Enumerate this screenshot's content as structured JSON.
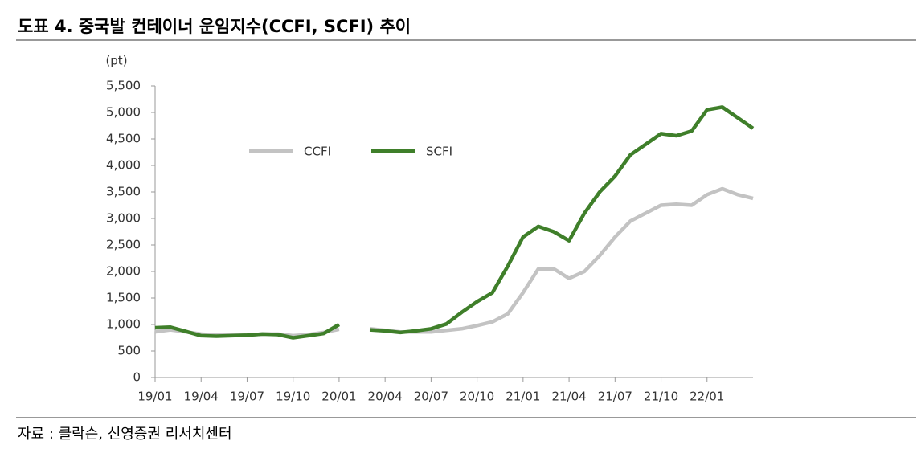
{
  "header": {
    "title": "도표 4. 중국발 컨테이너 운임지수(CCFI, SCFI) 추이"
  },
  "chart_data": {
    "type": "line",
    "y_label": "(pt)",
    "x": [
      0,
      1,
      2,
      3,
      4,
      5,
      6,
      7,
      8,
      9,
      10,
      11,
      12,
      13,
      14,
      15,
      16,
      17,
      18,
      19,
      20,
      21,
      22,
      23,
      24,
      25,
      26,
      27,
      28,
      29,
      30,
      31,
      32,
      33,
      34,
      35,
      36,
      37,
      38,
      39
    ],
    "xlim": [
      0,
      39
    ],
    "xticks": [
      {
        "value": 0,
        "label": "19/01"
      },
      {
        "value": 3,
        "label": "19/04"
      },
      {
        "value": 6,
        "label": "19/07"
      },
      {
        "value": 9,
        "label": "19/10"
      },
      {
        "value": 12,
        "label": "20/01"
      },
      {
        "value": 15,
        "label": "20/04"
      },
      {
        "value": 18,
        "label": "20/07"
      },
      {
        "value": 21,
        "label": "20/10"
      },
      {
        "value": 24,
        "label": "21/01"
      },
      {
        "value": 27,
        "label": "21/04"
      },
      {
        "value": 30,
        "label": "21/07"
      },
      {
        "value": 33,
        "label": "21/10"
      },
      {
        "value": 36,
        "label": "22/01"
      }
    ],
    "ylim": [
      0,
      5500
    ],
    "yticks": [
      0,
      500,
      {
        "value": 1000,
        "label": "1,000"
      },
      {
        "value": 1500,
        "label": "1,500"
      },
      {
        "value": 2000,
        "label": "2,000"
      },
      {
        "value": 2500,
        "label": "2,500"
      },
      {
        "value": 3000,
        "label": "3,000"
      },
      {
        "value": 3500,
        "label": "3,500"
      },
      {
        "value": 4000,
        "label": "4,000"
      },
      {
        "value": 4500,
        "label": "4,500"
      },
      {
        "value": 5000,
        "label": "5,000"
      },
      {
        "value": 5500,
        "label": "5,500"
      }
    ],
    "grid": false,
    "series": [
      {
        "name": "CCFI",
        "color": "#c3c3c3",
        "values": [
          860,
          900,
          860,
          820,
          800,
          800,
          800,
          820,
          820,
          790,
          810,
          850,
          910,
          null,
          920,
          890,
          860,
          860,
          860,
          890,
          920,
          980,
          1050,
          1200,
          1600,
          2050,
          2050,
          1870,
          2000,
          2300,
          2650,
          2950,
          3100,
          3250,
          3270,
          3250,
          3450,
          3560,
          3450,
          3380
        ]
      },
      {
        "name": "SCFI",
        "color": "#3f7f2a",
        "values": [
          940,
          950,
          870,
          790,
          780,
          790,
          800,
          820,
          810,
          750,
          790,
          830,
          1000,
          null,
          900,
          880,
          850,
          880,
          920,
          1010,
          1230,
          1430,
          1600,
          2100,
          2650,
          2850,
          2750,
          2580,
          3100,
          3500,
          3800,
          4200,
          4400,
          4600,
          4560,
          4650,
          5050,
          5100,
          4900,
          4700
        ]
      }
    ]
  },
  "footer": {
    "source": "자료 : 클락슨, 신영증권 리서치센터"
  }
}
